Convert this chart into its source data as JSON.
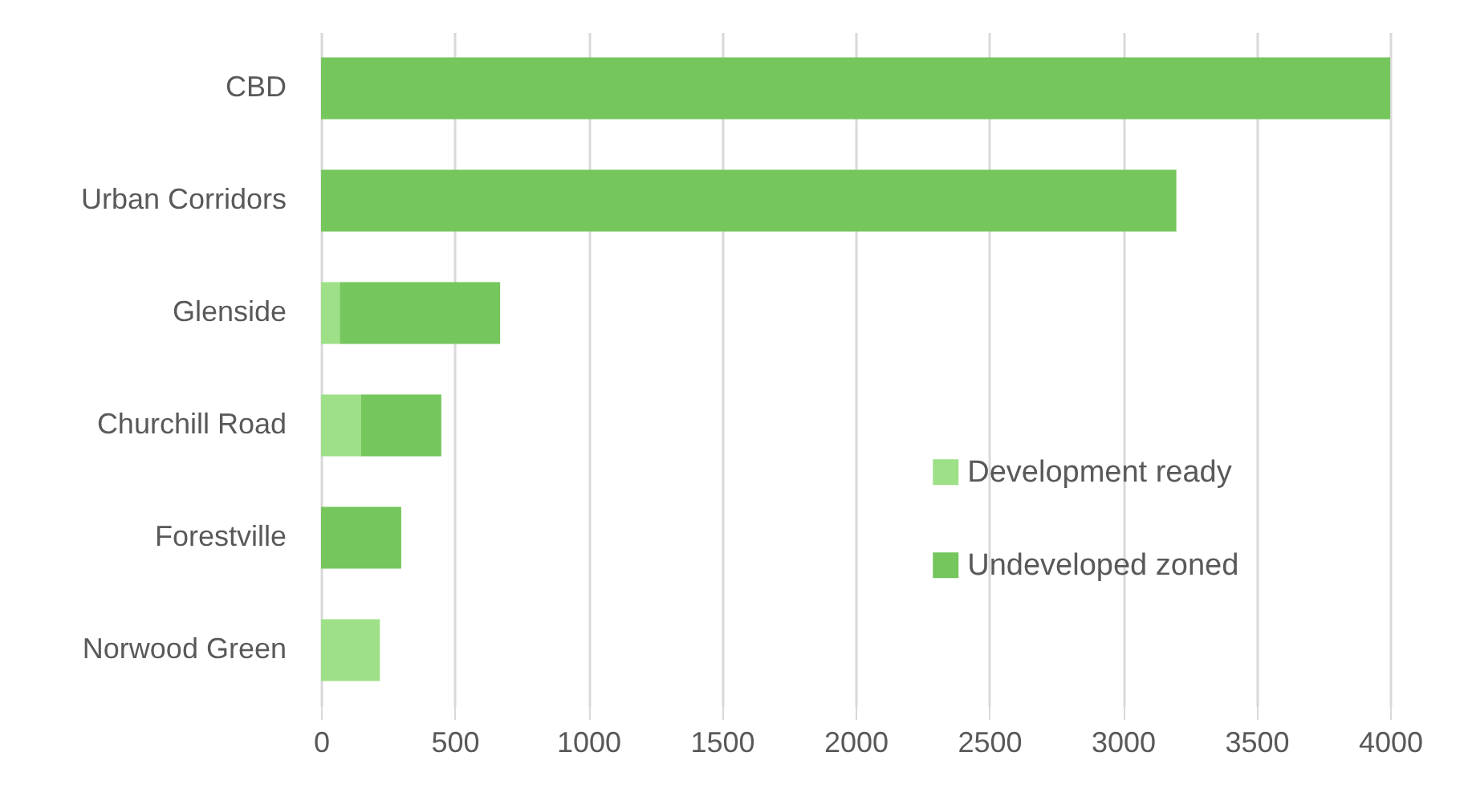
{
  "chart_data": {
    "type": "bar",
    "orientation": "horizontal",
    "stacked": true,
    "categories": [
      "CBD",
      "Urban Corridors",
      "Glenside",
      "Churchill Road",
      "Forestville",
      "Norwood Green"
    ],
    "series": [
      {
        "name": "Development ready",
        "color": "#9de087",
        "values": [
          null,
          null,
          70,
          150,
          null,
          220
        ]
      },
      {
        "name": "Undeveloped zoned",
        "color": "#75c65d",
        "values": [
          4000,
          3200,
          600,
          300,
          300,
          null
        ]
      }
    ],
    "xlim": [
      0,
      4000
    ],
    "xticks": [
      0,
      500,
      1000,
      1500,
      2000,
      2500,
      3000,
      3500,
      4000
    ],
    "grid": "x",
    "legend": "bottom right"
  }
}
